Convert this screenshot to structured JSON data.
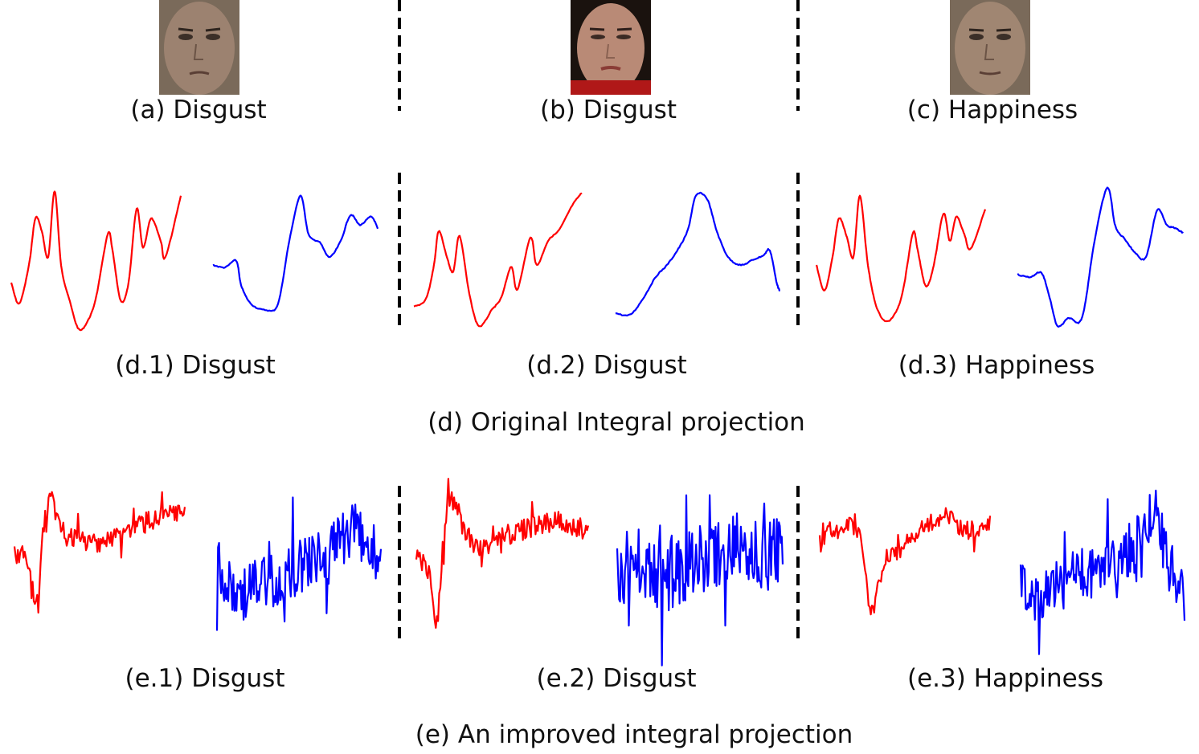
{
  "row_a": {
    "a": "(a) Disgust",
    "b": "(b) Disgust",
    "c": "(c) Happiness"
  },
  "row_d": {
    "d1": "(d.1) Disgust",
    "d2": "(d.2) Disgust",
    "d3": "(d.3) Happiness",
    "title": "(d) Original Integral projection"
  },
  "row_e": {
    "e1": "(e.1) Disgust",
    "e2": "(e.2) Disgust",
    "e3": "(e.3) Happiness",
    "title": "(e) An improved integral projection"
  },
  "colors": {
    "horizontal_projection": "#ff0000",
    "vertical_projection": "#0000ff",
    "separator": "#000000"
  }
}
